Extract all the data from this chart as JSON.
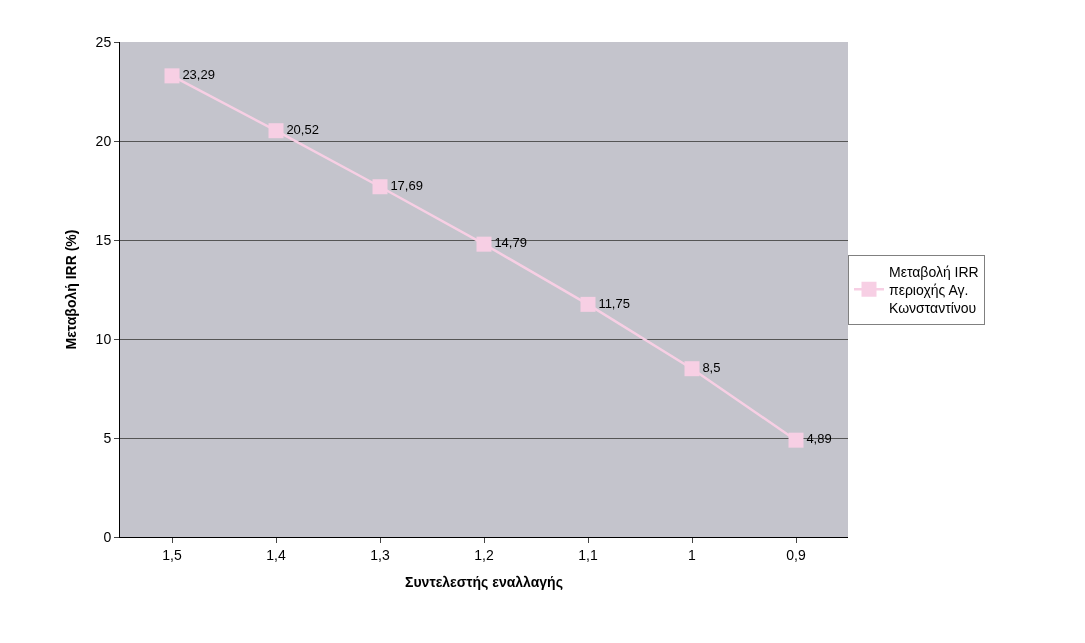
{
  "chart_data": {
    "type": "line",
    "xlabel": "Συντελεστής εναλλαγής",
    "ylabel": "Μεταβολή IRR (%)",
    "categories": [
      "1,5",
      "1,4",
      "1,3",
      "1,2",
      "1,1",
      "1",
      "0,9"
    ],
    "series": [
      {
        "name": "Μεταβολή IRR περιοχής Αγ. Κωνσταντίνου",
        "color": "#f7cfe4",
        "values": [
          23.29,
          20.52,
          17.69,
          14.79,
          11.75,
          8.5,
          4.89
        ],
        "value_labels": [
          "23,29",
          "20,52",
          "17,69",
          "14,79",
          "11,75",
          "8,5",
          "4,89"
        ]
      }
    ],
    "ylim": [
      0,
      25
    ],
    "yticks": [
      0,
      5,
      10,
      15,
      20,
      25
    ],
    "grid": "y",
    "legend": "right",
    "marker": "square",
    "line_style": "solid"
  }
}
